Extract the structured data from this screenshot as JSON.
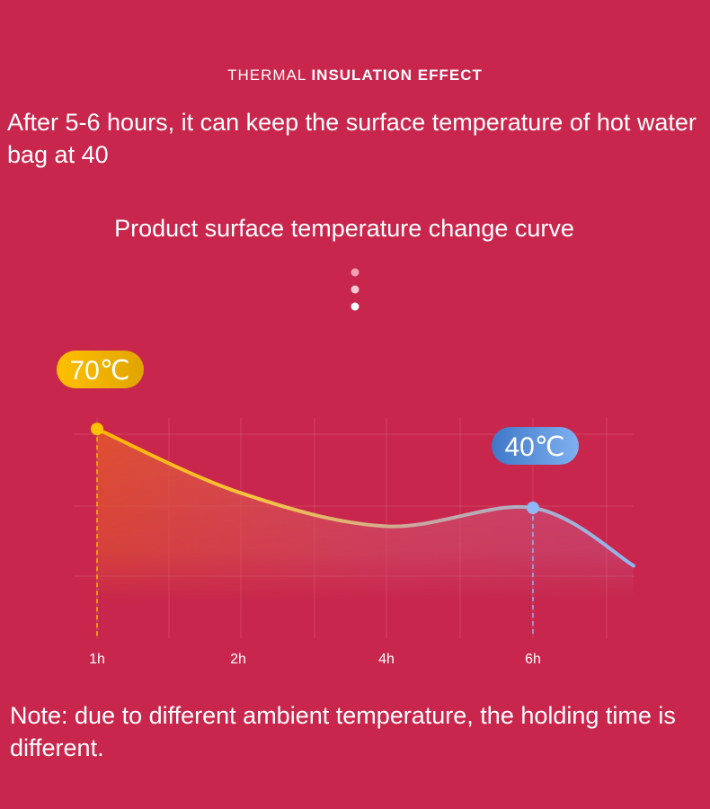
{
  "header": {
    "light": "THERMAL",
    "bold": "INSULATION EFFECT"
  },
  "headline": "After 5-6 hours, it can keep the surface temperature of hot water bag at 40",
  "note": "Note: due to different ambient temperature, the holding time is different.",
  "chart_data": {
    "type": "line",
    "title": "Product surface temperature change curve",
    "categories": [
      "1h",
      "2h",
      "4h",
      "6h",
      null
    ],
    "values": [
      70,
      46,
      33,
      40,
      18
    ],
    "value_labels": [
      "70℃",
      null,
      null,
      "40℃",
      null
    ],
    "ylim": [
      0,
      80
    ],
    "grid": true
  }
}
